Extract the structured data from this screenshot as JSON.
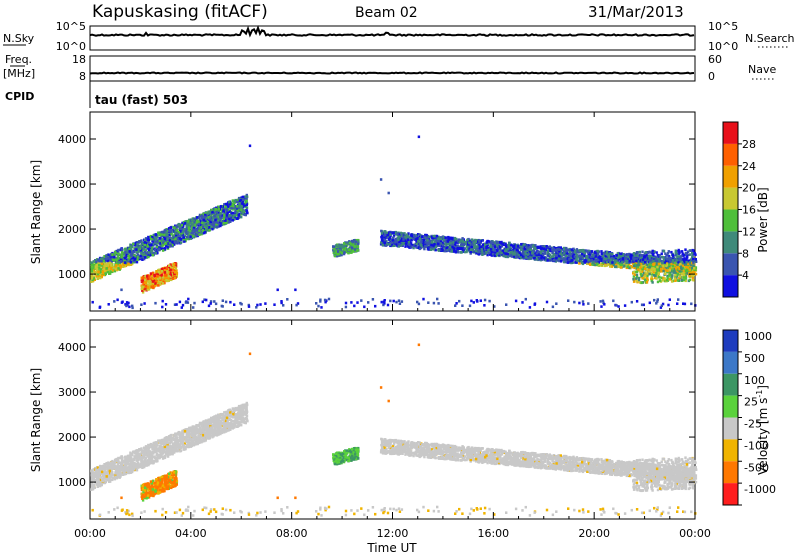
{
  "header": {
    "station": "Kapuskasing (fitACF)",
    "beam": "Beam 02",
    "date": "31/Mar/2013"
  },
  "top_panels": {
    "nsky_label": "N.Sky",
    "nsky_ticks": [
      "10^5",
      "10^0"
    ],
    "nsearch_label": "N.Search",
    "nsearch_ticks": [
      "10^5",
      "10^0"
    ],
    "freq_label_1": "Freq.",
    "freq_label_2": "[MHz]",
    "freq_ticks": [
      "18",
      "8"
    ],
    "nave_label": "Nave",
    "nave_ticks": [
      "60",
      "0"
    ],
    "cpid_label": "CPID",
    "cpid_text": "tau (fast) 503"
  },
  "chart_data": [
    {
      "type": "heatmap",
      "title": "",
      "ylabel": "Slant Range [km]",
      "xlabel": "",
      "x_range_hours": [
        0,
        24
      ],
      "ylim": [
        180,
        4600
      ],
      "yticks": [
        "1000",
        "2000",
        "3000",
        "4000"
      ],
      "colorbar": {
        "label": "Power [dB]",
        "ticks": [
          "4",
          "8",
          "12",
          "16",
          "20",
          "24",
          "28"
        ],
        "range": [
          0,
          32
        ],
        "colors": [
          "#1010e0",
          "#3a55b0",
          "#3f8a7a",
          "#4fbf3a",
          "#c8c832",
          "#f0a000",
          "#ff6000",
          "#e8101a"
        ]
      },
      "features": [
        {
          "name": "band",
          "x": [
            0.0,
            2.0,
            4.0,
            6.0
          ],
          "y": [
            1000,
            1400,
            2000,
            2600
          ]
        },
        {
          "name": "band",
          "x": [
            11.5,
            14.0,
            16.0,
            18.0,
            20.0,
            22.5,
            24.0
          ],
          "y": [
            1900,
            1600,
            1450,
            1350,
            1250,
            1150,
            1200
          ]
        }
      ]
    },
    {
      "type": "heatmap",
      "title": "",
      "ylabel": "Slant Range [km]",
      "xlabel": "Time UT",
      "x_range_hours": [
        0,
        24
      ],
      "ylim": [
        180,
        4600
      ],
      "yticks": [
        "1000",
        "2000",
        "3000",
        "4000"
      ],
      "xticks": [
        "00:00",
        "04:00",
        "08:00",
        "12:00",
        "16:00",
        "20:00",
        "00:00"
      ],
      "colorbar": {
        "label": "Velocity [m s",
        "label_sup": "-1",
        "label_end": "]",
        "ticks": [
          "1000",
          "500",
          "100",
          "25",
          "-25",
          "-100",
          "-500",
          "-1000"
        ],
        "colors": [
          "#1e3cbe",
          "#3c78c8",
          "#3c9664",
          "#5ad23c",
          "#c8c8c8",
          "#f0b400",
          "#ff7800",
          "#ff1e1e"
        ]
      }
    }
  ]
}
